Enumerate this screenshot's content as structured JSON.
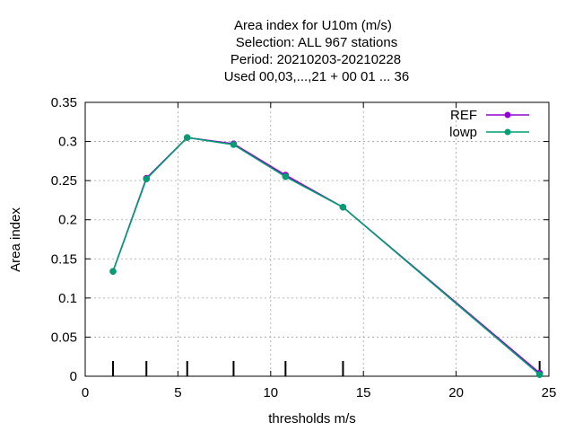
{
  "chart_data": {
    "type": "line",
    "title_lines": [
      "Area index  for U10m (m/s)",
      "Selection: ALL    967 stations",
      "Period: 20210203-20210228",
      "Used  00,03,...,21  + 00 01 ... 36"
    ],
    "xlabel": "thresholds m/s",
    "ylabel": "Area index",
    "xlim": [
      0,
      25
    ],
    "ylim": [
      0,
      0.35
    ],
    "xticks": [
      0,
      5,
      10,
      15,
      20,
      25
    ],
    "yticks": [
      0,
      0.05,
      0.1,
      0.15,
      0.2,
      0.25,
      0.3,
      0.35
    ],
    "ytick_labels": [
      "0",
      "0.05",
      "0.1",
      "0.15",
      "0.2",
      "0.25",
      "0.3",
      "0.35"
    ],
    "grid": true,
    "legend_position": "top-right",
    "threshold_marks": [
      1.5,
      3.3,
      5.5,
      8.0,
      10.8,
      13.9,
      24.5
    ],
    "series": [
      {
        "name": "REF",
        "color": "#9400d3",
        "x": [
          1.5,
          3.3,
          5.5,
          8.0,
          10.8,
          13.9,
          24.5
        ],
        "y": [
          0.134,
          0.253,
          0.305,
          0.297,
          0.257,
          0.216,
          0.004
        ]
      },
      {
        "name": "lowp",
        "color": "#009e73",
        "x": [
          1.5,
          3.3,
          5.5,
          8.0,
          10.8,
          13.9,
          24.5
        ],
        "y": [
          0.134,
          0.252,
          0.305,
          0.296,
          0.255,
          0.216,
          0.002
        ]
      }
    ]
  }
}
